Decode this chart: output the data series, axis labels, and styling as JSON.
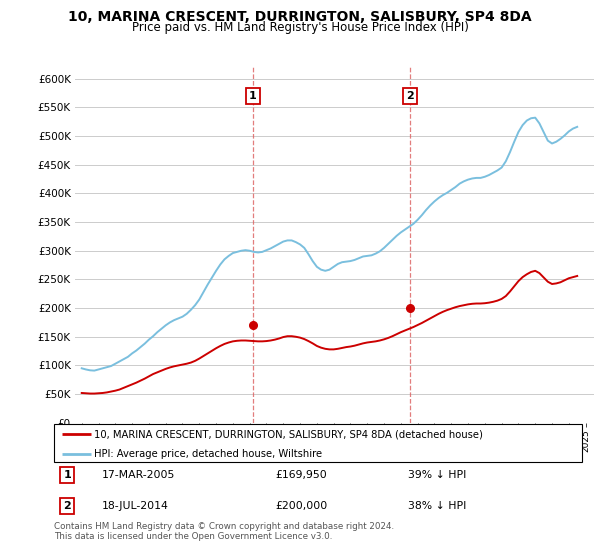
{
  "title": "10, MARINA CRESCENT, DURRINGTON, SALISBURY, SP4 8DA",
  "subtitle": "Price paid vs. HM Land Registry's House Price Index (HPI)",
  "title_fontsize": 10,
  "subtitle_fontsize": 8.5,
  "hpi_color": "#7abfde",
  "price_color": "#cc0000",
  "marker_color": "#cc0000",
  "vline_color": "#dd6666",
  "annotation_box_color": "#cc0000",
  "background_color": "#ffffff",
  "grid_color": "#cccccc",
  "ylim": [
    0,
    620000
  ],
  "yticks": [
    0,
    50000,
    100000,
    150000,
    200000,
    250000,
    300000,
    350000,
    400000,
    450000,
    500000,
    550000,
    600000
  ],
  "ytick_labels": [
    "£0",
    "£50K",
    "£100K",
    "£150K",
    "£200K",
    "£250K",
    "£300K",
    "£350K",
    "£400K",
    "£450K",
    "£500K",
    "£550K",
    "£600K"
  ],
  "sale1": {
    "year": 2005.2,
    "price": 169950,
    "label": "1",
    "date": "17-MAR-2005",
    "hpi_pct": "39% ↓ HPI"
  },
  "sale2": {
    "year": 2014.54,
    "price": 200000,
    "label": "2",
    "date": "18-JUL-2014",
    "hpi_pct": "38% ↓ HPI"
  },
  "legend_entry1": "10, MARINA CRESCENT, DURRINGTON, SALISBURY, SP4 8DA (detached house)",
  "legend_entry2": "HPI: Average price, detached house, Wiltshire",
  "footnote": "Contains HM Land Registry data © Crown copyright and database right 2024.\nThis data is licensed under the Open Government Licence v3.0.",
  "hpi_years": [
    1995.0,
    1995.25,
    1995.5,
    1995.75,
    1996.0,
    1996.25,
    1996.5,
    1996.75,
    1997.0,
    1997.25,
    1997.5,
    1997.75,
    1998.0,
    1998.25,
    1998.5,
    1998.75,
    1999.0,
    1999.25,
    1999.5,
    1999.75,
    2000.0,
    2000.25,
    2000.5,
    2000.75,
    2001.0,
    2001.25,
    2001.5,
    2001.75,
    2002.0,
    2002.25,
    2002.5,
    2002.75,
    2003.0,
    2003.25,
    2003.5,
    2003.75,
    2004.0,
    2004.25,
    2004.5,
    2004.75,
    2005.0,
    2005.25,
    2005.5,
    2005.75,
    2006.0,
    2006.25,
    2006.5,
    2006.75,
    2007.0,
    2007.25,
    2007.5,
    2007.75,
    2008.0,
    2008.25,
    2008.5,
    2008.75,
    2009.0,
    2009.25,
    2009.5,
    2009.75,
    2010.0,
    2010.25,
    2010.5,
    2010.75,
    2011.0,
    2011.25,
    2011.5,
    2011.75,
    2012.0,
    2012.25,
    2012.5,
    2012.75,
    2013.0,
    2013.25,
    2013.5,
    2013.75,
    2014.0,
    2014.25,
    2014.5,
    2014.75,
    2015.0,
    2015.25,
    2015.5,
    2015.75,
    2016.0,
    2016.25,
    2016.5,
    2016.75,
    2017.0,
    2017.25,
    2017.5,
    2017.75,
    2018.0,
    2018.25,
    2018.5,
    2018.75,
    2019.0,
    2019.25,
    2019.5,
    2019.75,
    2020.0,
    2020.25,
    2020.5,
    2020.75,
    2021.0,
    2021.25,
    2021.5,
    2021.75,
    2022.0,
    2022.25,
    2022.5,
    2022.75,
    2023.0,
    2023.25,
    2023.5,
    2023.75,
    2024.0,
    2024.25,
    2024.5
  ],
  "hpi_values": [
    95000,
    93000,
    91500,
    91000,
    93000,
    95000,
    97000,
    99000,
    103000,
    107000,
    111000,
    115000,
    121000,
    126000,
    132000,
    138000,
    145000,
    151000,
    158000,
    164000,
    170000,
    175000,
    179000,
    182000,
    185000,
    190000,
    197000,
    205000,
    215000,
    228000,
    241000,
    253000,
    265000,
    276000,
    285000,
    291000,
    296000,
    298000,
    300000,
    301000,
    300000,
    298000,
    297000,
    298000,
    301000,
    304000,
    308000,
    312000,
    316000,
    318000,
    318000,
    315000,
    311000,
    305000,
    294000,
    282000,
    272000,
    267000,
    265000,
    267000,
    272000,
    277000,
    280000,
    281000,
    282000,
    284000,
    287000,
    290000,
    291000,
    292000,
    295000,
    299000,
    305000,
    312000,
    319000,
    326000,
    332000,
    337000,
    342000,
    347000,
    354000,
    362000,
    371000,
    379000,
    386000,
    392000,
    397000,
    401000,
    406000,
    411000,
    417000,
    421000,
    424000,
    426000,
    427000,
    427000,
    429000,
    432000,
    436000,
    440000,
    445000,
    456000,
    472000,
    490000,
    507000,
    519000,
    527000,
    531000,
    532000,
    522000,
    507000,
    492000,
    487000,
    490000,
    495000,
    501000,
    508000,
    513000,
    516000
  ],
  "price_years": [
    1995.0,
    1995.25,
    1995.5,
    1995.75,
    1996.0,
    1996.25,
    1996.5,
    1996.75,
    1997.0,
    1997.25,
    1997.5,
    1997.75,
    1998.0,
    1998.25,
    1998.5,
    1998.75,
    1999.0,
    1999.25,
    1999.5,
    1999.75,
    2000.0,
    2000.25,
    2000.5,
    2000.75,
    2001.0,
    2001.25,
    2001.5,
    2001.75,
    2002.0,
    2002.25,
    2002.5,
    2002.75,
    2003.0,
    2003.25,
    2003.5,
    2003.75,
    2004.0,
    2004.25,
    2004.5,
    2004.75,
    2005.0,
    2005.25,
    2005.5,
    2005.75,
    2006.0,
    2006.25,
    2006.5,
    2006.75,
    2007.0,
    2007.25,
    2007.5,
    2007.75,
    2008.0,
    2008.25,
    2008.5,
    2008.75,
    2009.0,
    2009.25,
    2009.5,
    2009.75,
    2010.0,
    2010.25,
    2010.5,
    2010.75,
    2011.0,
    2011.25,
    2011.5,
    2011.75,
    2012.0,
    2012.25,
    2012.5,
    2012.75,
    2013.0,
    2013.25,
    2013.5,
    2013.75,
    2014.0,
    2014.25,
    2014.5,
    2014.75,
    2015.0,
    2015.25,
    2015.5,
    2015.75,
    2016.0,
    2016.25,
    2016.5,
    2016.75,
    2017.0,
    2017.25,
    2017.5,
    2017.75,
    2018.0,
    2018.25,
    2018.5,
    2018.75,
    2019.0,
    2019.25,
    2019.5,
    2019.75,
    2020.0,
    2020.25,
    2020.5,
    2020.75,
    2021.0,
    2021.25,
    2021.5,
    2021.75,
    2022.0,
    2022.25,
    2022.5,
    2022.75,
    2023.0,
    2023.25,
    2023.5,
    2023.75,
    2024.0,
    2024.25,
    2024.5
  ],
  "price_values": [
    52000,
    51500,
    51000,
    51000,
    51500,
    52000,
    53000,
    54500,
    56000,
    58000,
    61000,
    64000,
    67000,
    70000,
    73500,
    77000,
    81000,
    85000,
    88000,
    91000,
    94000,
    96500,
    98500,
    100000,
    101500,
    103000,
    105000,
    108000,
    112000,
    116500,
    121000,
    125500,
    130000,
    134000,
    137500,
    140000,
    142000,
    143000,
    143500,
    143500,
    143000,
    142500,
    142000,
    142000,
    142500,
    143500,
    145000,
    147000,
    149500,
    151000,
    151000,
    150000,
    148500,
    146000,
    142500,
    138500,
    134000,
    131000,
    129000,
    128000,
    128000,
    129000,
    130500,
    132000,
    133000,
    134500,
    136500,
    138500,
    140000,
    141000,
    142000,
    143500,
    145500,
    148000,
    151000,
    154500,
    158000,
    161000,
    164000,
    167000,
    170500,
    174000,
    178000,
    182000,
    186000,
    190000,
    193500,
    196500,
    199000,
    201500,
    203500,
    205000,
    206500,
    207500,
    208000,
    208000,
    208500,
    209500,
    211000,
    213000,
    216000,
    221000,
    229000,
    238000,
    247000,
    254000,
    259000,
    263000,
    265000,
    261000,
    253500,
    246000,
    242000,
    243000,
    245000,
    248500,
    252000,
    254000,
    256000
  ]
}
